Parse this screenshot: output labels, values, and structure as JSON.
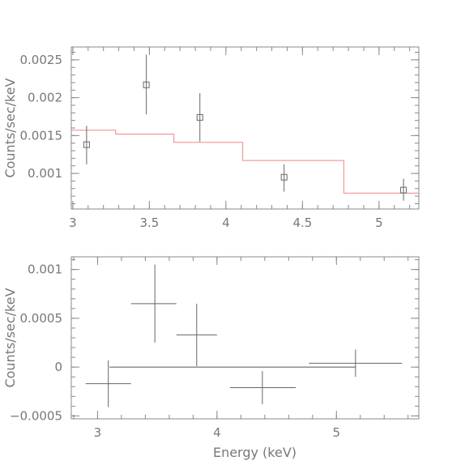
{
  "chart_data": [
    {
      "type": "scatter",
      "panel": "spectrum",
      "ylabel": "Counts/sec/keV",
      "xlabel": "",
      "xlim": [
        2.99,
        5.26
      ],
      "ylim": [
        0.00053,
        0.00267
      ],
      "xticks": [
        3,
        3.5,
        4,
        4.5,
        5
      ],
      "xtick_labels": [
        "3",
        "3.5",
        "4",
        "4.5",
        "5"
      ],
      "yticks": [
        0.001,
        0.0015,
        0.002,
        0.0025
      ],
      "ytick_labels": [
        "0.001",
        "0.0015",
        "0.002",
        "0.0025"
      ],
      "grid": false,
      "points": [
        {
          "x": 3.09,
          "y": 0.00138,
          "y_lo": 0.00112,
          "y_hi": 0.00163
        },
        {
          "x": 3.48,
          "y": 0.00217,
          "y_lo": 0.00178,
          "y_hi": 0.00257
        },
        {
          "x": 3.83,
          "y": 0.00174,
          "y_lo": 0.00142,
          "y_hi": 0.00206
        },
        {
          "x": 4.38,
          "y": 0.00095,
          "y_lo": 0.00076,
          "y_hi": 0.00112
        },
        {
          "x": 5.16,
          "y": 0.00078,
          "y_lo": 0.00064,
          "y_hi": 0.00093
        }
      ],
      "model_steps": [
        {
          "x0": 2.99,
          "x1": 3.28,
          "y": 0.00157
        },
        {
          "x0": 3.28,
          "x1": 3.66,
          "y": 0.00152
        },
        {
          "x0": 3.66,
          "x1": 4.11,
          "y": 0.00141
        },
        {
          "x0": 4.11,
          "x1": 4.77,
          "y": 0.00117
        },
        {
          "x0": 4.77,
          "x1": 5.26,
          "y": 0.00074
        }
      ],
      "colors": {
        "data": "#666666",
        "model": "#ee8888",
        "axes": "#888888",
        "text": "#777777"
      }
    },
    {
      "type": "scatter",
      "panel": "residuals",
      "ylabel": "Counts/sec/keV",
      "xlabel": "Energy (keV)",
      "xlim": [
        2.78,
        5.69
      ],
      "ylim": [
        -0.00053,
        0.00113
      ],
      "xticks": [
        3,
        4,
        5
      ],
      "xtick_labels": [
        "3",
        "4",
        "5"
      ],
      "yticks": [
        -0.0005,
        0,
        0.0005,
        0.001
      ],
      "ytick_labels": [
        "−0.0005",
        "0",
        "0.0005",
        "0.001"
      ],
      "grid": false,
      "zero_line": {
        "x0": 3.1,
        "x1": 5.16,
        "y": 0
      },
      "points": [
        {
          "x": 3.09,
          "y": -0.00017,
          "x_lo": 2.9,
          "x_hi": 3.28,
          "y_lo": -0.00041,
          "y_hi": 7e-05
        },
        {
          "x": 3.48,
          "y": 0.00065,
          "x_lo": 3.28,
          "x_hi": 3.66,
          "y_lo": 0.00025,
          "y_hi": 0.00105
        },
        {
          "x": 3.83,
          "y": 0.00033,
          "x_lo": 3.66,
          "x_hi": 4.0,
          "y_lo": 1e-05,
          "y_hi": 0.00065
        },
        {
          "x": 4.38,
          "y": -0.00021,
          "x_lo": 4.11,
          "x_hi": 4.66,
          "y_lo": -0.00038,
          "y_hi": -4e-05
        },
        {
          "x": 5.16,
          "y": 4e-05,
          "x_lo": 4.77,
          "x_hi": 5.55,
          "y_lo": -0.0001,
          "y_hi": 0.00018
        }
      ],
      "colors": {
        "data": "#666666",
        "zero_line": "#555555",
        "axes": "#888888",
        "text": "#777777"
      }
    }
  ]
}
